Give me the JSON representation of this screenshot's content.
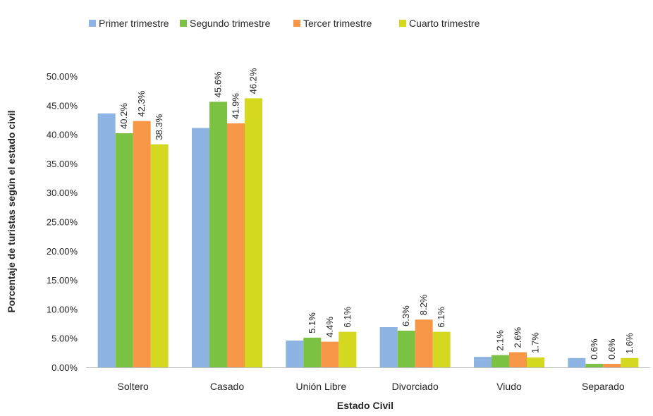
{
  "chart_data": {
    "type": "bar",
    "title": "",
    "xlabel": "Estado Civil",
    "ylabel": "Porcentaje de turistas según el estado civil",
    "categories": [
      "Soltero",
      "Casado",
      "Unión Libre",
      "Divorciado",
      "Viudo",
      "Separado"
    ],
    "ylim": [
      0,
      50
    ],
    "yticks": [
      "0.00%",
      "5.00%",
      "10.00%",
      "15.00%",
      "20.00%",
      "25.00%",
      "30.00%",
      "35.00%",
      "40.00%",
      "45.00%",
      "50.00%"
    ],
    "grid": false,
    "legend_position": "top",
    "series": [
      {
        "name": "Primer trimestre",
        "color": "#8db4e2",
        "values": [
          43.6,
          41.1,
          4.6,
          6.9,
          1.8,
          1.6
        ],
        "labels": [
          "",
          "",
          "",
          "",
          "",
          ""
        ]
      },
      {
        "name": "Segundo trimestre",
        "color": "#7cc242",
        "values": [
          40.2,
          45.6,
          5.1,
          6.3,
          2.1,
          0.6
        ],
        "labels": [
          "40.2%",
          "45.6%",
          "5.1%",
          "6.3%",
          "2.1%",
          "0.6%"
        ]
      },
      {
        "name": "Tercer trimestre",
        "color": "#f79646",
        "values": [
          42.3,
          41.9,
          4.4,
          8.2,
          2.6,
          0.6
        ],
        "labels": [
          "42.3%",
          "41.9%",
          "4.4%",
          "8.2%",
          "2.6%",
          "0.6%"
        ]
      },
      {
        "name": "Cuarto trimestre",
        "color": "#d4d81e",
        "values": [
          38.3,
          46.2,
          6.1,
          6.1,
          1.7,
          1.6
        ],
        "labels": [
          "38.3%",
          "46.2%",
          "6.1%",
          "6.1%",
          "1.7%",
          "1.6%"
        ]
      }
    ]
  }
}
